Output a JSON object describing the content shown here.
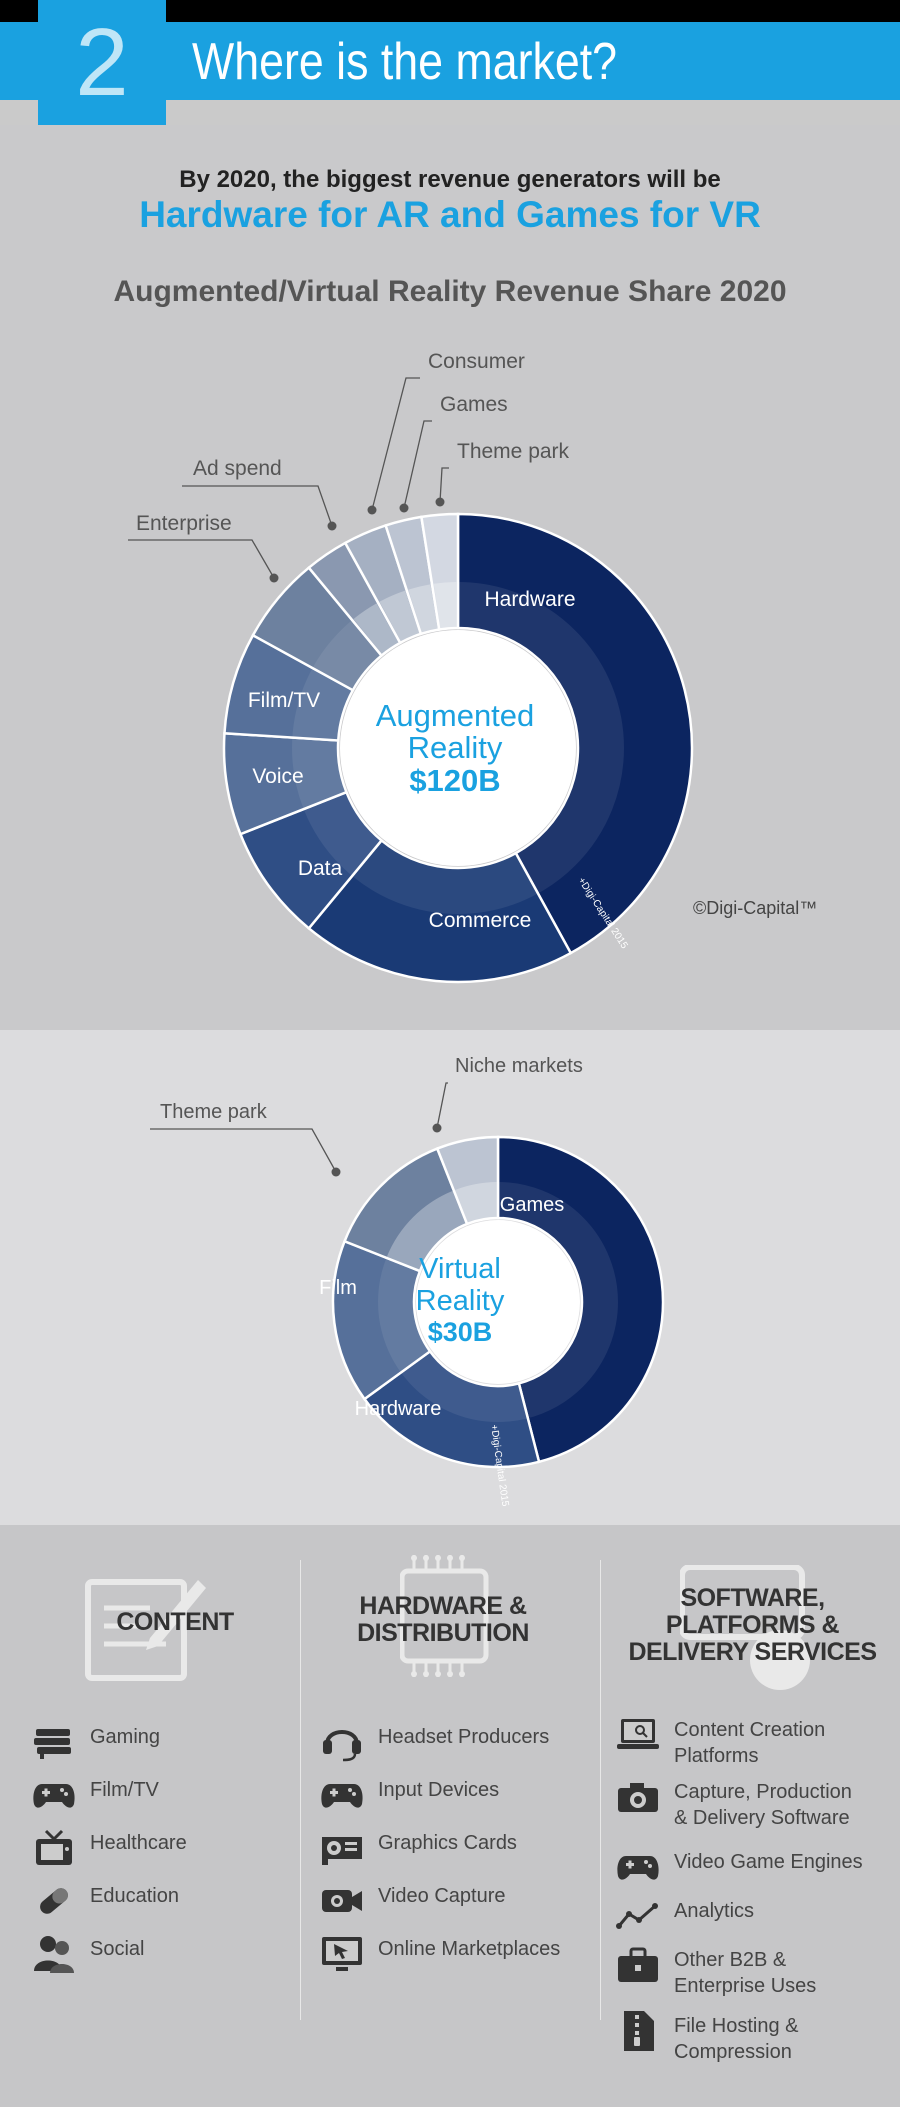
{
  "header": {
    "number": "2",
    "title": "Where is the market?"
  },
  "intro": {
    "line1": "By 2020, the biggest revenue generators will be",
    "line2": "Hardware for AR and Games for VR"
  },
  "chart_title": "Augmented/Virtual Reality Revenue Share 2020",
  "credit": "©Digi-Capital™",
  "colors": {
    "dark_navy": "#0c2560",
    "navy": "#1a3a75",
    "mid_blue": "#2f4e85",
    "slate": "#56709a",
    "grey_blue": "#6d819f",
    "light_slate": "#8a98b0",
    "pale": "#a5b0c2",
    "paler": "#bcc4d2",
    "palest": "#d3d8e2",
    "accent": "#1aa1e0"
  },
  "chart_data": [
    {
      "type": "pie",
      "center_label": [
        "Augmented",
        "Reality"
      ],
      "center_value": "$120B",
      "watermark": "+Digi-Capital 2015",
      "categories": [
        "Hardware",
        "Commerce",
        "Data",
        "Voice",
        "Film/TV",
        "Enterprise",
        "Ad spend",
        "Consumer",
        "Games",
        "Theme park"
      ],
      "values": [
        42,
        19,
        8,
        7,
        7,
        6,
        3,
        3,
        2.5,
        2.5
      ]
    },
    {
      "type": "pie",
      "center_label": [
        "Virtual",
        "Reality"
      ],
      "center_value": "$30B",
      "watermark": "+Digi-Capital 2015",
      "categories": [
        "Games",
        "Hardware",
        "Film",
        "Theme park",
        "Niche markets"
      ],
      "values": [
        46,
        19,
        16,
        13,
        6
      ]
    }
  ],
  "columns": [
    {
      "heading": [
        "CONTENT"
      ],
      "items": [
        {
          "label": [
            "Gaming"
          ],
          "icon": "books-icon"
        },
        {
          "label": [
            "Film/TV"
          ],
          "icon": "gamepad-icon"
        },
        {
          "label": [
            "Healthcare"
          ],
          "icon": "tv-icon"
        },
        {
          "label": [
            "Education"
          ],
          "icon": "pill-icon"
        },
        {
          "label": [
            "Social"
          ],
          "icon": "people-icon"
        }
      ]
    },
    {
      "heading": [
        "HARDWARE &",
        "DISTRIBUTION"
      ],
      "items": [
        {
          "label": [
            "Headset Producers"
          ],
          "icon": "headset-icon"
        },
        {
          "label": [
            "Input Devices"
          ],
          "icon": "gamepad-icon"
        },
        {
          "label": [
            "Graphics Cards"
          ],
          "icon": "graphics-card-icon"
        },
        {
          "label": [
            "Video Capture"
          ],
          "icon": "video-camera-icon"
        },
        {
          "label": [
            "Online Marketplaces"
          ],
          "icon": "monitor-cursor-icon"
        }
      ]
    },
    {
      "heading": [
        "SOFTWARE,",
        "PLATFORMS &",
        "DELIVERY SERVICES"
      ],
      "items": [
        {
          "label": [
            "Content Creation",
            "Platforms"
          ],
          "icon": "laptop-search-icon"
        },
        {
          "label": [
            "Capture, Production",
            "& Delivery Software"
          ],
          "icon": "camera-icon"
        },
        {
          "label": [
            "Video Game Engines"
          ],
          "icon": "gamepad-icon"
        },
        {
          "label": [
            "Analytics"
          ],
          "icon": "analytics-icon"
        },
        {
          "label": [
            "Other B2B &",
            "Enterprise Uses"
          ],
          "icon": "briefcase-icon"
        },
        {
          "label": [
            "File Hosting &",
            "Compression"
          ],
          "icon": "zip-file-icon"
        }
      ]
    }
  ]
}
